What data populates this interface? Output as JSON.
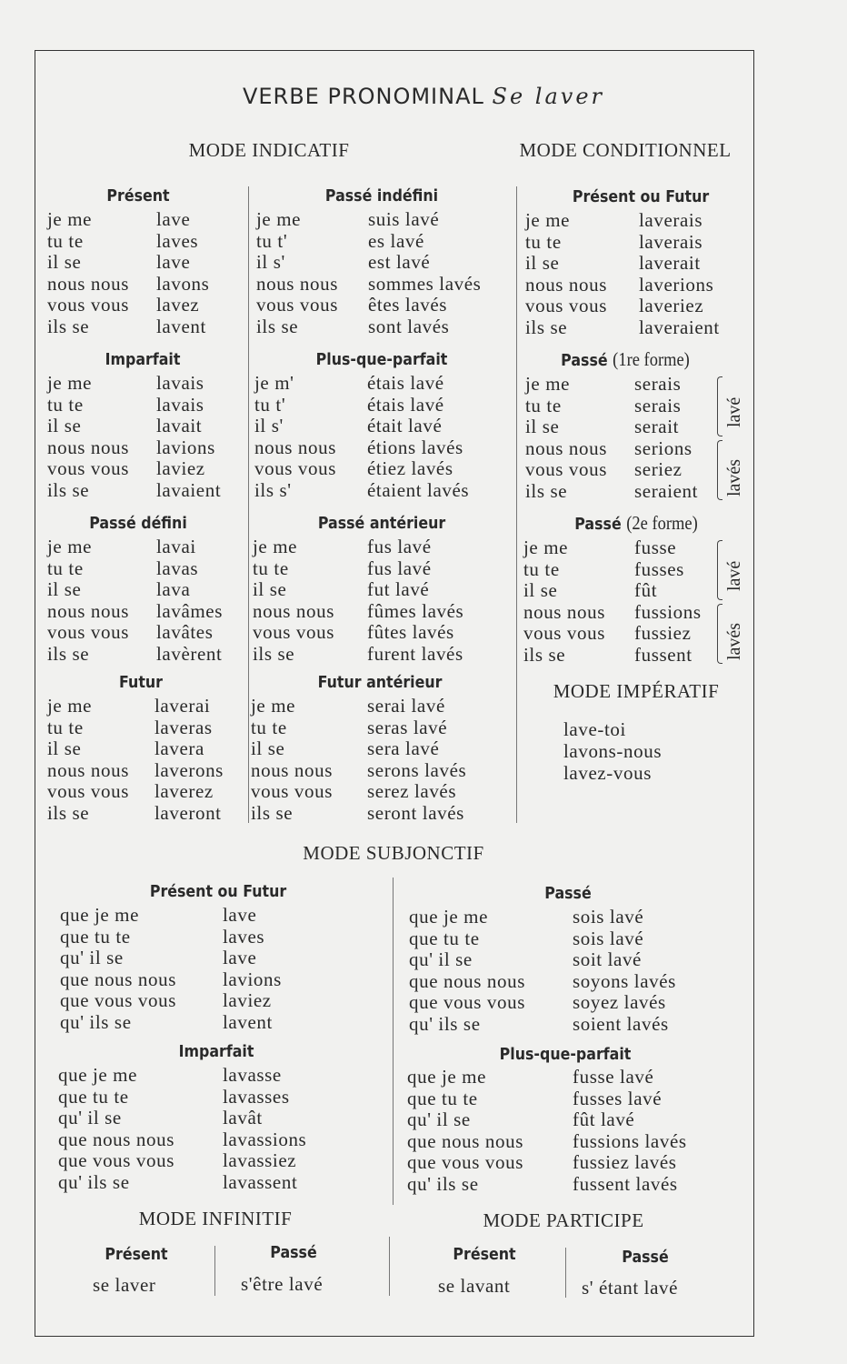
{
  "title": {
    "main": "VERBE PRONOMINAL",
    "verb": "Se laver"
  },
  "indicatif": {
    "heading": "MODE INDICATIF",
    "present": {
      "label": "Présent",
      "rows": [
        [
          "je me",
          "lave"
        ],
        [
          "tu te",
          "laves"
        ],
        [
          "il se",
          "lave"
        ],
        [
          "nous nous",
          "lavons"
        ],
        [
          "vous vous",
          "lavez"
        ],
        [
          "ils se",
          "lavent"
        ]
      ]
    },
    "imparfait": {
      "label": "Imparfait",
      "rows": [
        [
          "je me",
          "lavais"
        ],
        [
          "tu te",
          "lavais"
        ],
        [
          "il se",
          "lavait"
        ],
        [
          "nous nous",
          "lavions"
        ],
        [
          "vous vous",
          "laviez"
        ],
        [
          "ils se",
          "lavaient"
        ]
      ]
    },
    "passe_defini": {
      "label": "Passé défini",
      "rows": [
        [
          "je me",
          "lavai"
        ],
        [
          "tu te",
          "lavas"
        ],
        [
          "il se",
          "lava"
        ],
        [
          "nous nous",
          "lavâmes"
        ],
        [
          "vous vous",
          "lavâtes"
        ],
        [
          "ils se",
          "lavèrent"
        ]
      ]
    },
    "futur": {
      "label": "Futur",
      "rows": [
        [
          "je me",
          "laverai"
        ],
        [
          "tu te",
          "laveras"
        ],
        [
          "il se",
          "lavera"
        ],
        [
          "nous nous",
          "laverons"
        ],
        [
          "vous vous",
          "laverez"
        ],
        [
          "ils se",
          "laveront"
        ]
      ]
    },
    "passe_indefini": {
      "label": "Passé indéfini",
      "rows": [
        [
          "je me",
          "suis lavé"
        ],
        [
          "tu t'",
          "es lavé"
        ],
        [
          "il s'",
          "est lavé"
        ],
        [
          "nous nous",
          "sommes lavés"
        ],
        [
          "vous vous",
          "êtes lavés"
        ],
        [
          "ils se",
          "sont lavés"
        ]
      ]
    },
    "plus_que_parfait": {
      "label": "Plus-que-parfait",
      "rows": [
        [
          "je m'",
          "étais lavé"
        ],
        [
          "tu t'",
          "étais lavé"
        ],
        [
          "il s'",
          "était lavé"
        ],
        [
          "nous nous",
          "étions lavés"
        ],
        [
          "vous vous",
          "étiez lavés"
        ],
        [
          "ils s'",
          "étaient lavés"
        ]
      ]
    },
    "passe_anterieur": {
      "label": "Passé antérieur",
      "rows": [
        [
          "je me",
          "fus lavé"
        ],
        [
          "tu te",
          "fus lavé"
        ],
        [
          "il se",
          "fut lavé"
        ],
        [
          "nous nous",
          "fûmes lavés"
        ],
        [
          "vous vous",
          "fûtes lavés"
        ],
        [
          "ils se",
          "furent lavés"
        ]
      ]
    },
    "futur_anterieur": {
      "label": "Futur antérieur",
      "rows": [
        [
          "je me",
          "serai lavé"
        ],
        [
          "tu te",
          "seras lavé"
        ],
        [
          "il se",
          "sera lavé"
        ],
        [
          "nous nous",
          "serons lavés"
        ],
        [
          "vous vous",
          "serez lavés"
        ],
        [
          "ils se",
          "seront lavés"
        ]
      ]
    }
  },
  "conditionnel": {
    "heading": "MODE CONDITIONNEL",
    "present": {
      "label": "Présent ou Futur",
      "rows": [
        [
          "je me",
          "laverais"
        ],
        [
          "tu te",
          "laverais"
        ],
        [
          "il se",
          "laverait"
        ],
        [
          "nous nous",
          "laverions"
        ],
        [
          "vous vous",
          "laveriez"
        ],
        [
          "ils se",
          "laveraient"
        ]
      ]
    },
    "passe1": {
      "label": "Passé",
      "suffix": "(1re forme)",
      "rows": [
        [
          "je me",
          "serais"
        ],
        [
          "tu te",
          "serais"
        ],
        [
          "il se",
          "serait"
        ],
        [
          "nous nous",
          "serions"
        ],
        [
          "vous vous",
          "seriez"
        ],
        [
          "ils se",
          "seraient"
        ]
      ],
      "sing": "lavé",
      "plur": "lavés"
    },
    "passe2": {
      "label": "Passé",
      "suffix": "(2e forme)",
      "rows": [
        [
          "je me",
          "fusse"
        ],
        [
          "tu te",
          "fusses"
        ],
        [
          "il se",
          "fût"
        ],
        [
          "nous nous",
          "fussions"
        ],
        [
          "vous vous",
          "fussiez"
        ],
        [
          "ils se",
          "fussent"
        ]
      ],
      "sing": "lavé",
      "plur": "lavés"
    }
  },
  "imperatif": {
    "heading": "MODE IMPÉRATIF",
    "items": [
      "lave-toi",
      "lavons-nous",
      "lavez-vous"
    ]
  },
  "subjonctif": {
    "heading": "MODE SUBJONCTIF",
    "present": {
      "label": "Présent ou Futur",
      "rows": [
        [
          "que je me",
          "lave"
        ],
        [
          "que tu te",
          "laves"
        ],
        [
          "qu' il se",
          "lave"
        ],
        [
          "que nous nous",
          "lavions"
        ],
        [
          "que vous vous",
          "laviez"
        ],
        [
          "qu' ils se",
          "lavent"
        ]
      ]
    },
    "imparfait": {
      "label": "Imparfait",
      "rows": [
        [
          "que je me",
          "lavasse"
        ],
        [
          "que tu te",
          "lavasses"
        ],
        [
          "qu' il se",
          "lavât"
        ],
        [
          "que nous nous",
          "lavassions"
        ],
        [
          "que vous vous",
          "lavassiez"
        ],
        [
          "qu' ils se",
          "lavassent"
        ]
      ]
    },
    "passe": {
      "label": "Passé",
      "rows": [
        [
          "que je me",
          "sois lavé"
        ],
        [
          "que tu te",
          "sois lavé"
        ],
        [
          "qu' il se",
          "soit lavé"
        ],
        [
          "que nous nous",
          "soyons lavés"
        ],
        [
          "que vous vous",
          "soyez lavés"
        ],
        [
          "qu' ils se",
          "soient lavés"
        ]
      ]
    },
    "plus_que_parfait": {
      "label": "Plus-que-parfait",
      "rows": [
        [
          "que je me",
          "fusse lavé"
        ],
        [
          "que tu te",
          "fusses lavé"
        ],
        [
          "qu' il se",
          "fût lavé"
        ],
        [
          "que nous nous",
          "fussions lavés"
        ],
        [
          "que vous vous",
          "fussiez lavés"
        ],
        [
          "qu' ils se",
          "fussent lavés"
        ]
      ]
    }
  },
  "infinitif": {
    "heading": "MODE INFINITIF",
    "present_label": "Présent",
    "present": "se laver",
    "passe_label": "Passé",
    "passe": "s'être lavé"
  },
  "participe": {
    "heading": "MODE PARTICIPE",
    "present_label": "Présent",
    "present": "se lavant",
    "passe_label": "Passé",
    "passe": "s' étant lavé"
  }
}
